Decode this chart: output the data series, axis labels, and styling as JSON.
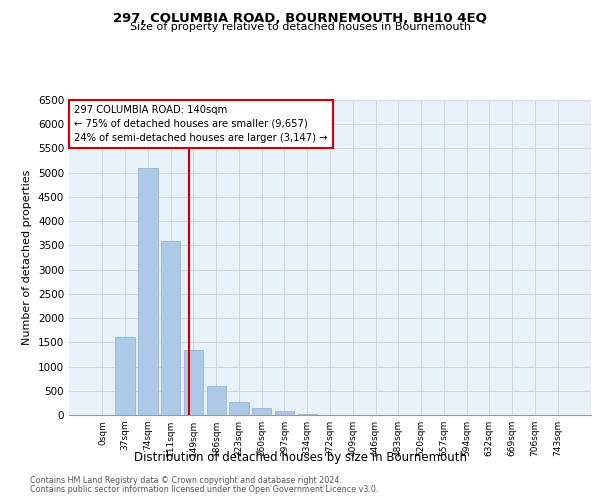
{
  "title": "297, COLUMBIA ROAD, BOURNEMOUTH, BH10 4EQ",
  "subtitle": "Size of property relative to detached houses in Bournemouth",
  "xlabel": "Distribution of detached houses by size in Bournemouth",
  "ylabel": "Number of detached properties",
  "bar_labels": [
    "0sqm",
    "37sqm",
    "74sqm",
    "111sqm",
    "149sqm",
    "186sqm",
    "223sqm",
    "260sqm",
    "297sqm",
    "334sqm",
    "372sqm",
    "409sqm",
    "446sqm",
    "483sqm",
    "520sqm",
    "557sqm",
    "594sqm",
    "632sqm",
    "669sqm",
    "706sqm",
    "743sqm"
  ],
  "bar_values": [
    0,
    1600,
    5100,
    3600,
    1350,
    600,
    270,
    150,
    80,
    30,
    10,
    0,
    0,
    0,
    0,
    0,
    0,
    0,
    0,
    0,
    0
  ],
  "bar_color": "#adc9e8",
  "bar_edge_color": "#8cb0d0",
  "grid_color": "#ccd9e8",
  "background_color": "#e8f0f8",
  "property_line_color": "#cc0000",
  "annotation_text": "297 COLUMBIA ROAD: 140sqm\n← 75% of detached houses are smaller (9,657)\n24% of semi-detached houses are larger (3,147) →",
  "annotation_box_color": "#cc0000",
  "ylim": [
    0,
    6500
  ],
  "yticks": [
    0,
    500,
    1000,
    1500,
    2000,
    2500,
    3000,
    3500,
    4000,
    4500,
    5000,
    5500,
    6000,
    6500
  ],
  "footnote1": "Contains HM Land Registry data © Crown copyright and database right 2024.",
  "footnote2": "Contains public sector information licensed under the Open Government Licence v3.0."
}
